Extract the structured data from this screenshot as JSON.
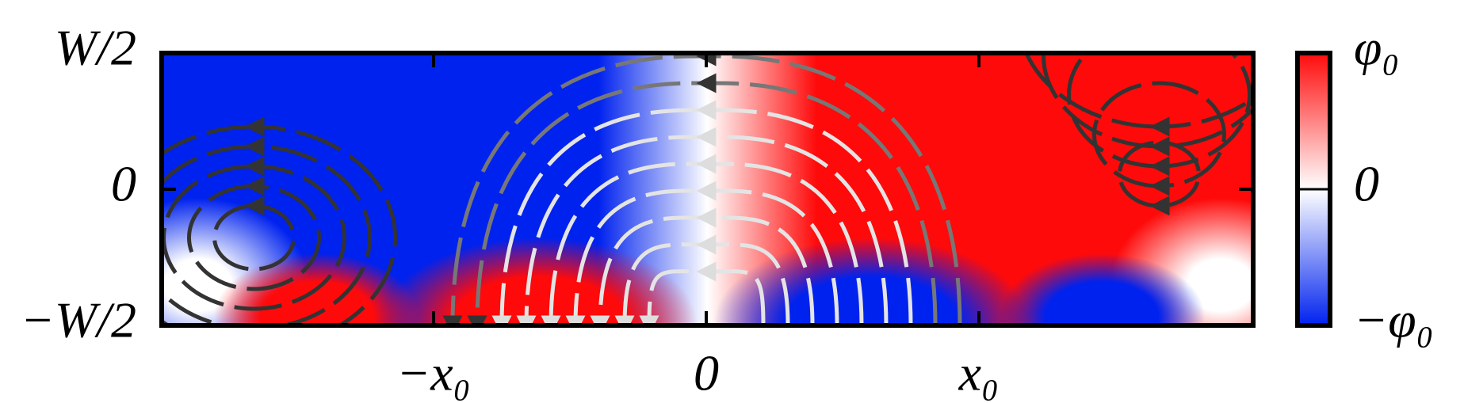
{
  "axes": {
    "yticks": [
      "W/2",
      "0",
      "−W/2"
    ],
    "xticks": [
      "−x₀",
      "0",
      "x₀"
    ]
  },
  "colorbar": {
    "ticks": [
      "φ₀",
      "0",
      "−φ₀"
    ]
  }
}
